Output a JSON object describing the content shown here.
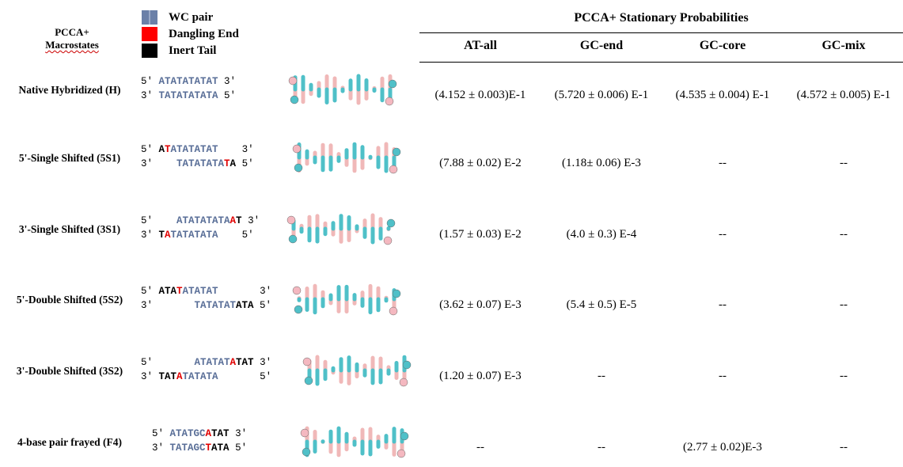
{
  "header": {
    "macrostates_line1": "PCCA+",
    "macrostates_line2": "Macrostates",
    "probs_title": "PCCA+ Stationary Probabilities"
  },
  "legend": {
    "wc": "WC pair",
    "dangling": "Dangling End",
    "inert": "Inert Tail",
    "colors": {
      "wc": "#6b80a8",
      "dangling": "#ff0000",
      "inert": "#000000"
    }
  },
  "columns": [
    "AT-all",
    "GC-end",
    "GC-core",
    "GC-mix"
  ],
  "rows": [
    {
      "label": "Native Hybridized (H)",
      "top": [
        [
          "p",
          "5′ "
        ],
        [
          "w",
          "ATATATATAT"
        ],
        [
          "p",
          " 3′"
        ]
      ],
      "bottom": [
        [
          "p",
          "3′ "
        ],
        [
          "w",
          "TATATATATA"
        ],
        [
          "p",
          " 5′"
        ]
      ],
      "values": [
        "(4.152 ± 0.003)E-1",
        "(5.720 ± 0.006) E-1",
        "(4.535 ± 0.004) E-1",
        "(4.572 ± 0.005) E-1"
      ]
    },
    {
      "label": "5'-Single Shifted  (5S1)",
      "top": [
        [
          "p",
          "5′ "
        ],
        [
          "k",
          "A"
        ],
        [
          "r",
          "T"
        ],
        [
          "w",
          "ATATATAT"
        ],
        [
          "p",
          "    3′"
        ]
      ],
      "bottom": [
        [
          "p",
          "3′    "
        ],
        [
          "w",
          "TATATATA"
        ],
        [
          "r",
          "T"
        ],
        [
          "k",
          "A"
        ],
        [
          "p",
          " 5′"
        ]
      ],
      "values": [
        "(7.88 ± 0.02) E-2",
        "(1.18± 0.06) E-3",
        "--",
        "--"
      ]
    },
    {
      "label": "3'-Single Shifted  (3S1)",
      "top": [
        [
          "p",
          "5′    "
        ],
        [
          "w",
          "ATATATATA"
        ],
        [
          "r",
          "A"
        ],
        [
          "k",
          "T"
        ],
        [
          "p",
          " 3′"
        ]
      ],
      "bottom": [
        [
          "p",
          "3′ "
        ],
        [
          "k",
          "T"
        ],
        [
          "r",
          "A"
        ],
        [
          "w",
          "TATATATA"
        ],
        [
          "p",
          "    5′"
        ]
      ],
      "values": [
        "(1.57 ± 0.03) E-2",
        "(4.0 ± 0.3) E-4",
        "--",
        "--"
      ]
    },
    {
      "label": "5'-Double Shifted  (5S2)",
      "top": [
        [
          "p",
          "5′ "
        ],
        [
          "k",
          "ATA"
        ],
        [
          "r",
          "T"
        ],
        [
          "w",
          "ATATAT"
        ],
        [
          "p",
          "       3′"
        ]
      ],
      "bottom": [
        [
          "p",
          "3′       "
        ],
        [
          "w",
          "TATATAT"
        ],
        [
          "k",
          "ATA"
        ],
        [
          "p",
          " 5′"
        ]
      ],
      "values": [
        "(3.62 ± 0.07) E-3",
        "(5.4 ± 0.5) E-5",
        "--",
        "--"
      ]
    },
    {
      "label": "3'-Double Shifted  (3S2)",
      "top": [
        [
          "p",
          "5′       "
        ],
        [
          "w",
          "ATATAT"
        ],
        [
          "r",
          "A"
        ],
        [
          "k",
          "TAT"
        ],
        [
          "p",
          " 3′"
        ]
      ],
      "bottom": [
        [
          "p",
          "3′ "
        ],
        [
          "k",
          "TAT"
        ],
        [
          "r",
          "A"
        ],
        [
          "w",
          "TATATA"
        ],
        [
          "p",
          "       5′"
        ]
      ],
      "values": [
        "(1.20 ± 0.07) E-3",
        "--",
        "--",
        "--"
      ]
    },
    {
      "label": "4-base pair frayed (F4)",
      "top": [
        [
          "p",
          "5′ "
        ],
        [
          "w",
          "ATATGC"
        ],
        [
          "r",
          "A"
        ],
        [
          "k",
          "TAT"
        ],
        [
          "p",
          " 3′"
        ]
      ],
      "bottom": [
        [
          "p",
          "3′ "
        ],
        [
          "w",
          "TATAGC"
        ],
        [
          "r",
          "T"
        ],
        [
          "k",
          "ATA"
        ],
        [
          "p",
          " 5′"
        ]
      ],
      "values": [
        "--",
        "--",
        "(2.77 ± 0.02)E-3",
        "--"
      ]
    }
  ]
}
